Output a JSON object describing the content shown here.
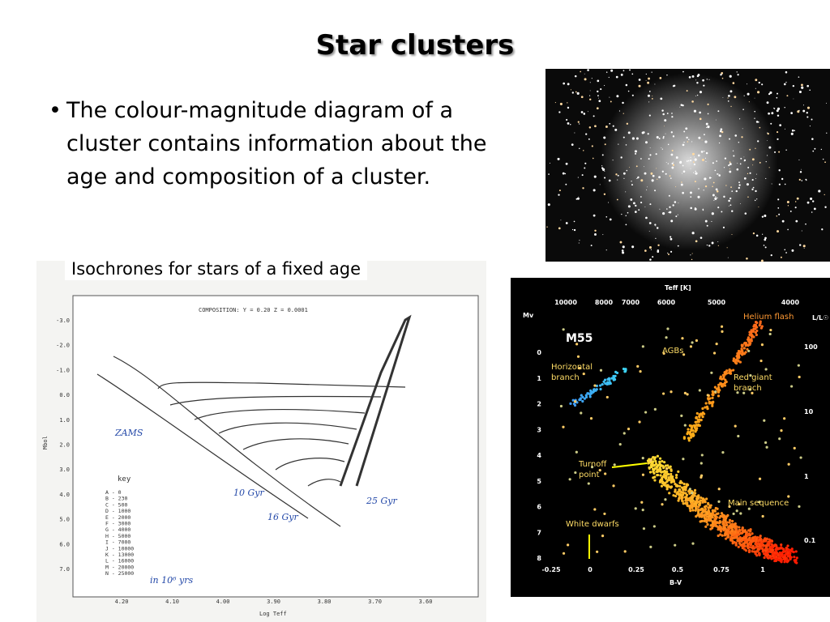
{
  "title": "Star clusters",
  "bullets": [
    "The colour-magnitude diagram of a cluster contains information about the age and composition of a cluster."
  ],
  "caption": "Isochrones for stars of a fixed age",
  "isochrone_figure": {
    "composition": "COMPOSITION:   Y = 0.20   Z = 0.0001",
    "y_axis_label": "Mbol",
    "x_axis_label": "Log Teff",
    "yticks": [
      "-3.0",
      "-2.0",
      "-1.0",
      "0.0",
      "1.0",
      "2.0",
      "3.0",
      "4.0",
      "5.0",
      "6.0",
      "7.0"
    ],
    "xticks": [
      "4.20",
      "4.10",
      "4.00",
      "3.90",
      "3.80",
      "3.70",
      "3.60"
    ],
    "key_title": "key",
    "key": [
      "A -     0",
      "B -   230",
      "C -   500",
      "D -  1000",
      "E -  2000",
      "F -  3000",
      "G -  4000",
      "H -  5000",
      "I -  7000",
      "J - 10000",
      "K - 13000",
      "L - 16000",
      "M - 20000",
      "N - 25000"
    ],
    "annotations": [
      "ZAMS",
      "10 Gyr",
      "16 Gyr",
      "25 Gyr",
      "in 10⁶ yrs"
    ]
  },
  "m55_figure": {
    "name": "M55",
    "top_axis_label": "Teff [K]",
    "top_ticks": [
      "10000",
      "8000",
      "7000",
      "6000",
      "5000",
      "4000"
    ],
    "left_axis_label": "Mv",
    "left_ticks": [
      "0",
      "1",
      "2",
      "3",
      "4",
      "5",
      "6",
      "7",
      "8"
    ],
    "bottom_axis_label": "B-V",
    "bottom_ticks": [
      "-0.25",
      "0",
      "0.25",
      "0.5",
      "0.75",
      "1"
    ],
    "right_axis_label": "L/L☉",
    "right_ticks": [
      "100",
      "10",
      "1",
      "0.1"
    ],
    "labels": [
      [
        "Helium flash"
      ],
      [
        "AGBs"
      ],
      [
        "Horizontal",
        "branch"
      ],
      [
        "Red giant",
        "branch"
      ],
      [
        "Turnoff",
        "point"
      ],
      [
        "Main sequence"
      ],
      [
        "White dwarfs"
      ]
    ]
  }
}
